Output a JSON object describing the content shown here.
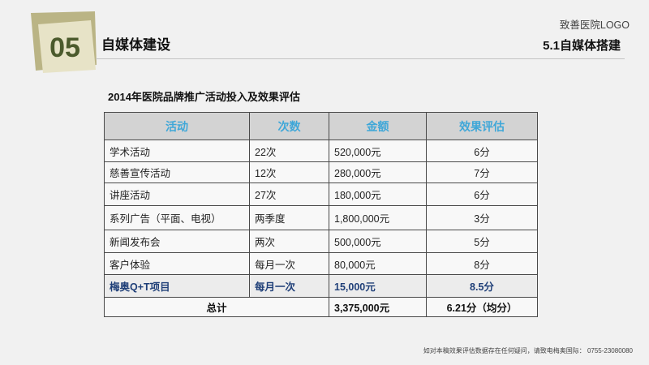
{
  "section": {
    "number": "05",
    "title": "自媒体建设"
  },
  "header": {
    "logo_text": "致善医院LOGO",
    "subtitle": "5.1自媒体搭建"
  },
  "table": {
    "title": "2014年医院品牌推广活动投入及效果评估",
    "columns": [
      "活动",
      "次数",
      "金额",
      "效果评估"
    ],
    "rows": [
      {
        "activity": "学术活动",
        "count": "22次",
        "amount": "520,000元",
        "score": "6分"
      },
      {
        "activity": "慈善宣传活动",
        "count": "12次",
        "amount": "280,000元",
        "score": "7分"
      },
      {
        "activity": "讲座活动",
        "count": "27次",
        "amount": "180,000元",
        "score": "6分"
      },
      {
        "activity": "系列广告（平面、电视）",
        "count": "两季度",
        "amount": "1,800,000元",
        "score": "3分"
      },
      {
        "activity": "新闻发布会",
        "count": "两次",
        "amount": "500,000元",
        "score": "5分"
      },
      {
        "activity": "客户体验",
        "count": "每月一次",
        "amount": "80,000元",
        "score": "8分"
      }
    ],
    "highlight_row": {
      "activity": "梅奥Q+T项目",
      "count": "每月一次",
      "amount": "15,000元",
      "score": "8.5分"
    },
    "total": {
      "label": "总计",
      "amount": "3,375,000元",
      "score": "6.21分（均分）"
    }
  },
  "footer": {
    "note": "如对本稿效果评估数据存在任何疑问，请致电梅奥国际： 0755-23080080"
  },
  "colors": {
    "header_text": "#3fa7d8",
    "highlight_text": "#1f3f78",
    "badge_back": "#bab485",
    "badge_front": "#e7e3c7",
    "badge_number": "#4b5a2c"
  }
}
